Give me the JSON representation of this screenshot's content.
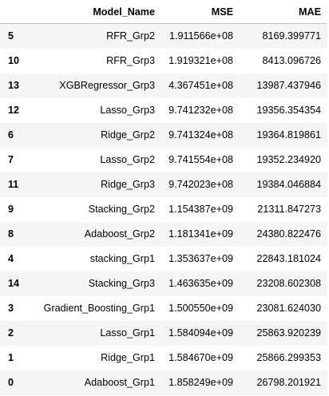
{
  "table": {
    "columns": [
      "",
      "Model_Name",
      "MSE",
      "MAE"
    ],
    "rows": [
      {
        "index": "5",
        "model": "RFR_Grp2",
        "mse": "1.911566e+08",
        "mae": "8169.399771"
      },
      {
        "index": "10",
        "model": "RFR_Grp3",
        "mse": "1.919321e+08",
        "mae": "8413.096726"
      },
      {
        "index": "13",
        "model": "XGBRegressor_Grp3",
        "mse": "4.367451e+08",
        "mae": "13987.437946"
      },
      {
        "index": "12",
        "model": "Lasso_Grp3",
        "mse": "9.741232e+08",
        "mae": "19356.354354"
      },
      {
        "index": "6",
        "model": "Ridge_Grp2",
        "mse": "9.741324e+08",
        "mae": "19364.819861"
      },
      {
        "index": "7",
        "model": "Lasso_Grp2",
        "mse": "9.741554e+08",
        "mae": "19352.234920"
      },
      {
        "index": "11",
        "model": "Ridge_Grp3",
        "mse": "9.742023e+08",
        "mae": "19384.046884"
      },
      {
        "index": "9",
        "model": "Stacking_Grp2",
        "mse": "1.154387e+09",
        "mae": "21311.847273"
      },
      {
        "index": "8",
        "model": "Adaboost_Grp2",
        "mse": "1.181341e+09",
        "mae": "24380.822476"
      },
      {
        "index": "4",
        "model": "stacking_Grp1",
        "mse": "1.353637e+09",
        "mae": "22843.181024"
      },
      {
        "index": "14",
        "model": "Stacking_Grp3",
        "mse": "1.463635e+09",
        "mae": "23208.602308"
      },
      {
        "index": "3",
        "model": "Gradient_Boosting_Grp1",
        "mse": "1.500550e+09",
        "mae": "23081.624030"
      },
      {
        "index": "2",
        "model": "Lasso_Grp1",
        "mse": "1.584094e+09",
        "mae": "25863.920239"
      },
      {
        "index": "1",
        "model": "Ridge_Grp1",
        "mse": "1.584670e+09",
        "mae": "25866.299353"
      },
      {
        "index": "0",
        "model": "Adaboost_Grp1",
        "mse": "1.858249e+09",
        "mae": "26798.201921"
      }
    ]
  },
  "colors": {
    "background": "#ffffff",
    "stripe": "#f5f5f5",
    "header_rule": "#bdbdbd",
    "text": "#000000"
  }
}
